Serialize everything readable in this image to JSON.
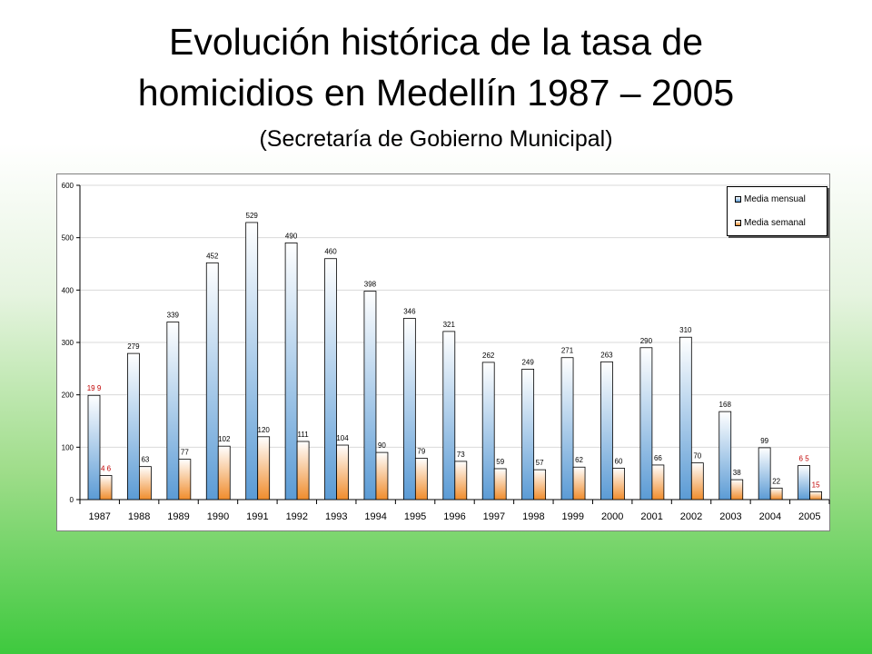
{
  "title": {
    "line1": "Evolución histórica de la tasa de",
    "line2": "homicidios en Medellín 1987 – 2005",
    "subtitle": "(Secretaría de Gobierno Municipal)"
  },
  "chart_data": {
    "type": "bar",
    "categories": [
      "1987",
      "1988",
      "1989",
      "1990",
      "1991",
      "1992",
      "1993",
      "1994",
      "1995",
      "1996",
      "1997",
      "1998",
      "1999",
      "2000",
      "2001",
      "2002",
      "2003",
      "2004",
      "2005"
    ],
    "series": [
      {
        "name": "Media mensual",
        "values": [
          199,
          279,
          339,
          452,
          529,
          490,
          460,
          398,
          346,
          321,
          262,
          249,
          271,
          263,
          290,
          310,
          168,
          99,
          65
        ],
        "labels": [
          "19 9",
          "279",
          "339",
          "452",
          "529",
          "490",
          "460",
          "398",
          "346",
          "321",
          "262",
          "249",
          "271",
          "263",
          "290",
          "310",
          "168",
          "99",
          "6 5"
        ],
        "color_top": "#ffffff",
        "color_bottom": "#5b9bd5"
      },
      {
        "name": "Media semanal",
        "values": [
          46,
          63,
          77,
          102,
          120,
          111,
          104,
          90,
          79,
          73,
          59,
          57,
          62,
          60,
          66,
          70,
          38,
          22,
          15
        ],
        "labels": [
          "4 6",
          "63",
          "77",
          "102",
          "120",
          "111",
          "104",
          "90",
          "79",
          "73",
          "59",
          "57",
          "62",
          "60",
          "66",
          "70",
          "38",
          "22",
          "15"
        ],
        "color_top": "#ffffff",
        "color_bottom": "#f08c2c"
      }
    ],
    "red_label_categories": [
      "1987",
      "2005"
    ],
    "red_label_color": "#c00000",
    "ylim": [
      0,
      600
    ],
    "yticks": [
      0,
      100,
      200,
      300,
      400,
      500,
      600
    ],
    "grid": true,
    "legend_position": "top-right"
  }
}
